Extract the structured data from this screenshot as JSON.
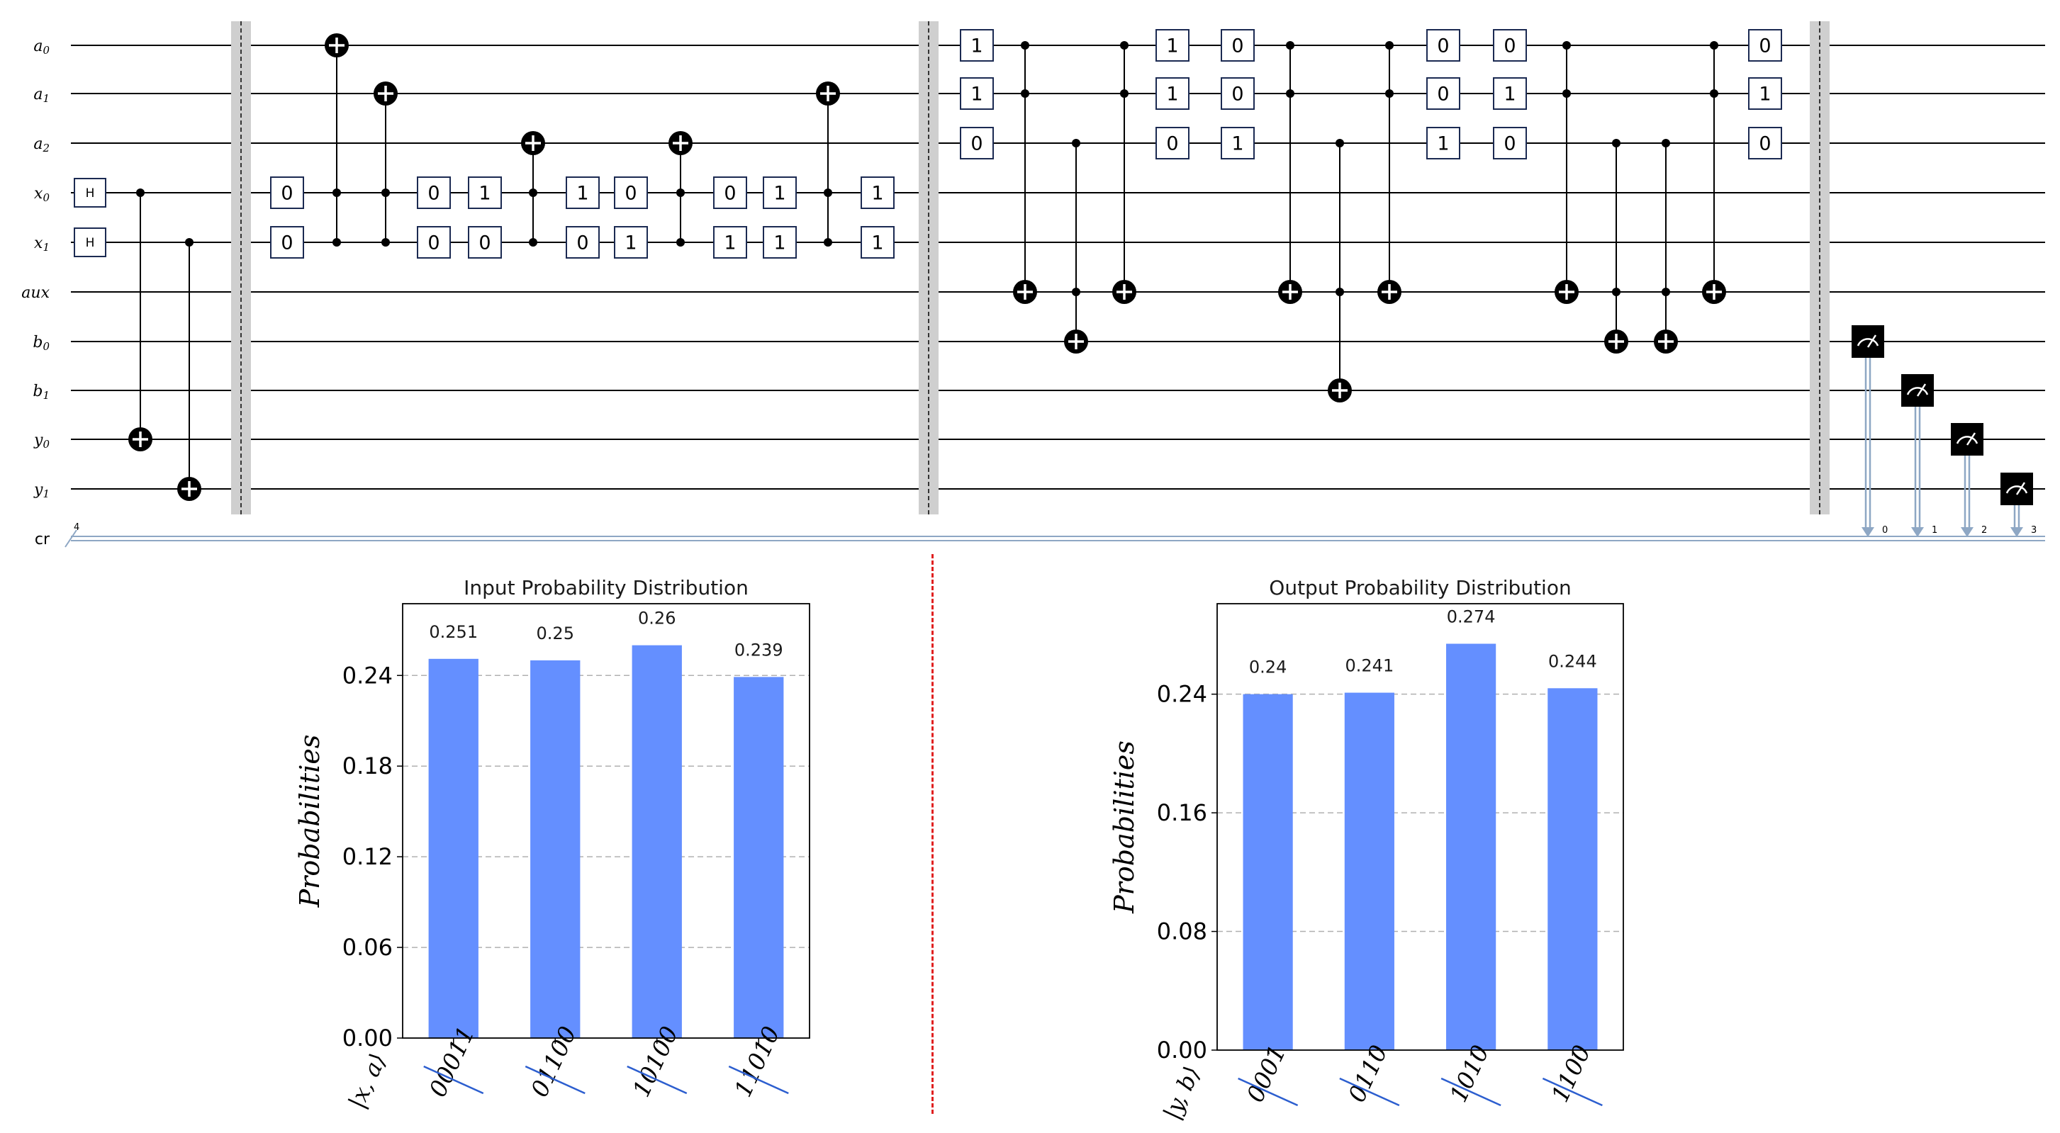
{
  "circuit": {
    "qubits": [
      {
        "base": "a",
        "sub": "0"
      },
      {
        "base": "a",
        "sub": "1"
      },
      {
        "base": "a",
        "sub": "2"
      },
      {
        "base": "x",
        "sub": "0"
      },
      {
        "base": "x",
        "sub": "1"
      },
      {
        "base": "aux",
        "sub": ""
      },
      {
        "base": "b",
        "sub": "0"
      },
      {
        "base": "b",
        "sub": "1"
      },
      {
        "base": "y",
        "sub": "0"
      },
      {
        "base": "y",
        "sub": "1"
      }
    ],
    "classical": {
      "label": "cr",
      "width": "4",
      "bits": [
        "0",
        "1",
        "2",
        "3"
      ]
    },
    "hadamard_label": "H",
    "colors": {
      "wire": "#000000",
      "barrier": "#cfcfcf",
      "classical": "#8ea7c4",
      "box_border": "#1b2a52",
      "meter": "#000000"
    }
  },
  "chart_data": [
    {
      "type": "bar",
      "title": "Input Probability Distribution",
      "categories": [
        "00011",
        "01100",
        "10100",
        "11010"
      ],
      "values": [
        0.251,
        0.25,
        0.26,
        0.239
      ],
      "value_labels": [
        "0.251",
        "0.25",
        "0.26",
        "0.239"
      ],
      "ylabel": "Probabilities",
      "xlabel": "|x, a⟩",
      "yticks": [
        "0.00",
        "0.06",
        "0.12",
        "0.18",
        "0.24"
      ],
      "ylim": [
        0,
        0.2875
      ],
      "grid": "horizontal dashed",
      "bar_color": "#648fff"
    },
    {
      "type": "bar",
      "title": "Output Probability Distribution",
      "categories": [
        "0001",
        "0110",
        "1010",
        "1100"
      ],
      "values": [
        0.24,
        0.241,
        0.274,
        0.244
      ],
      "value_labels": [
        "0.24",
        "0.241",
        "0.274",
        "0.244"
      ],
      "ylabel": "Probabilities",
      "xlabel": "|y, b⟩",
      "yticks": [
        "0.00",
        "0.08",
        "0.16",
        "0.24"
      ],
      "ylim": [
        0,
        0.301
      ],
      "grid": "horizontal dashed",
      "bar_color": "#648fff"
    }
  ]
}
